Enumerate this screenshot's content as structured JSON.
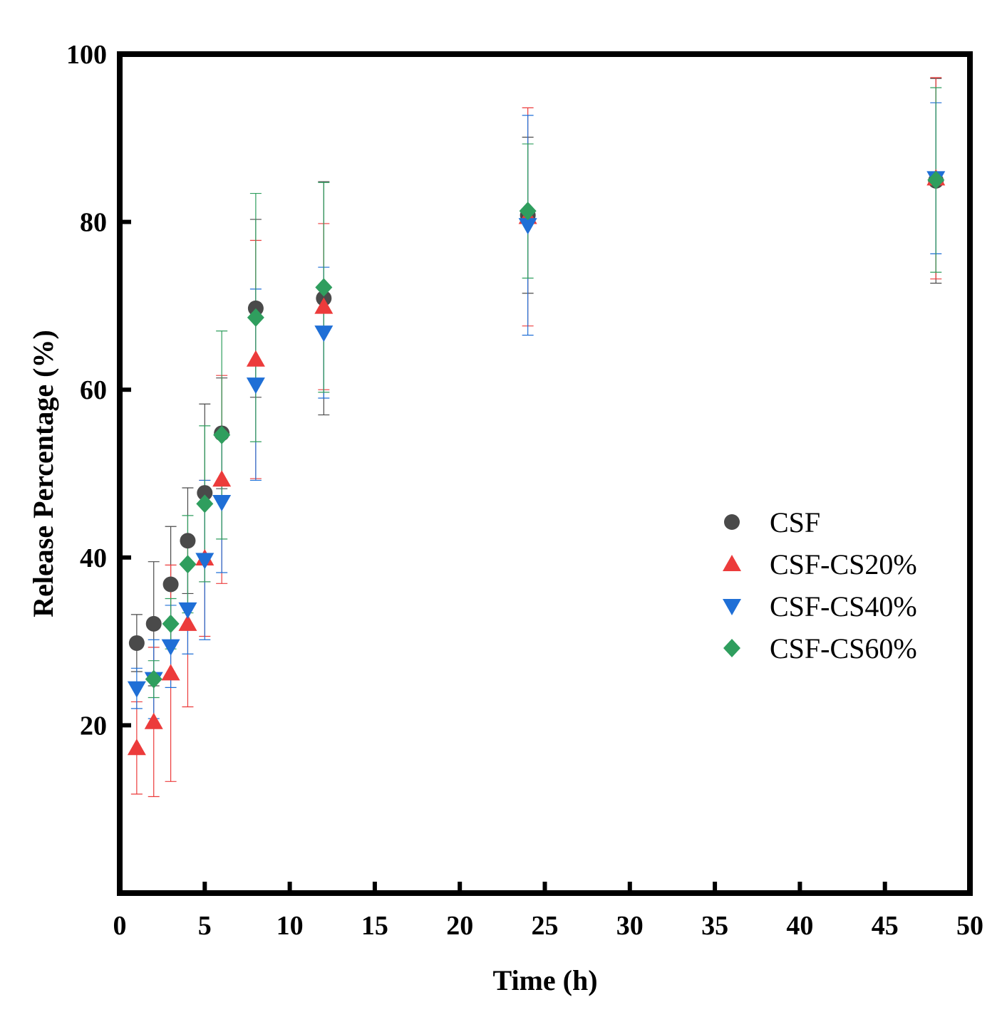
{
  "chart_data": {
    "type": "scatter",
    "title": "",
    "xlabel": "Time (h)",
    "ylabel": "Release Percentage (%)",
    "xlim": [
      0,
      50
    ],
    "ylim": [
      0,
      100
    ],
    "xticks": [
      0,
      5,
      10,
      15,
      20,
      25,
      30,
      35,
      40,
      45,
      50
    ],
    "yticks": [
      20,
      40,
      60,
      80,
      100
    ],
    "grid": false,
    "legend_position": "right",
    "series": [
      {
        "name": "CSF",
        "marker": "circle",
        "color": "#4a4a4a",
        "x": [
          1,
          2,
          3,
          4,
          5,
          6,
          8,
          12,
          24,
          48
        ],
        "y": [
          29.8,
          32.1,
          36.8,
          42.0,
          47.7,
          54.8,
          69.7,
          70.9,
          80.8,
          84.9
        ],
        "err": [
          3.4,
          7.4,
          6.9,
          6.3,
          10.6,
          6.6,
          10.6,
          13.9,
          9.3,
          12.2
        ]
      },
      {
        "name": "CSF-CS20%",
        "marker": "triangle-up",
        "color": "#ec3b3b",
        "x": [
          1,
          2,
          3,
          4,
          5,
          6,
          8,
          12,
          24,
          48
        ],
        "y": [
          17.3,
          20.4,
          26.2,
          32.1,
          39.9,
          49.3,
          63.6,
          69.9,
          80.6,
          85.2
        ],
        "err": [
          5.5,
          8.9,
          12.9,
          9.9,
          9.3,
          12.4,
          14.2,
          9.9,
          13.0,
          12.0
        ]
      },
      {
        "name": "CSF-CS40%",
        "marker": "triangle-down",
        "color": "#1f6fd6",
        "x": [
          1,
          2,
          3,
          4,
          5,
          6,
          8,
          12,
          24,
          48
        ],
        "y": [
          24.4,
          25.5,
          29.4,
          33.8,
          39.7,
          46.6,
          60.6,
          66.8,
          79.6,
          85.2
        ],
        "err": [
          2.4,
          4.7,
          4.9,
          5.3,
          9.5,
          8.4,
          11.4,
          7.8,
          13.1,
          9.0
        ]
      },
      {
        "name": "CSF-CS60%",
        "marker": "diamond",
        "color": "#2f9e5e",
        "x": [
          2,
          3,
          4,
          5,
          6,
          8,
          12,
          24,
          48
        ],
        "y": [
          25.5,
          32.1,
          39.2,
          46.4,
          54.6,
          68.6,
          72.2,
          81.3,
          85.0
        ],
        "err": [
          2.2,
          3.0,
          5.8,
          9.3,
          12.4,
          14.8,
          12.5,
          8.0,
          11.0
        ]
      }
    ]
  }
}
